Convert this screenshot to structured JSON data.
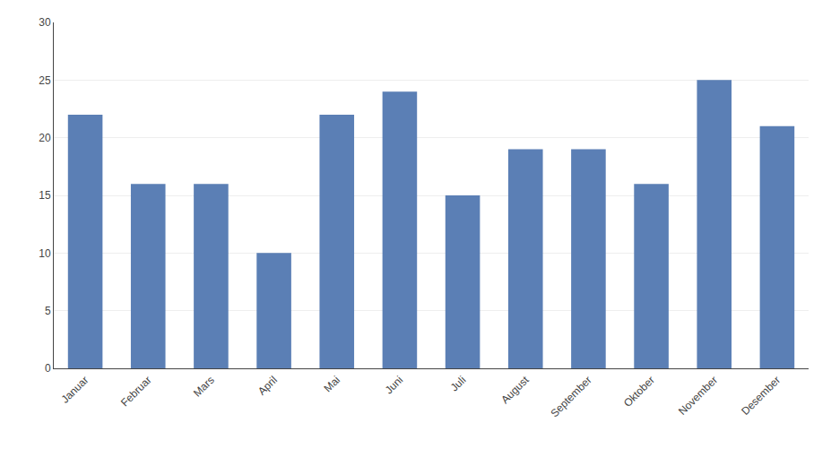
{
  "chart_data": {
    "type": "bar",
    "categories": [
      "Januar",
      "Februar",
      "Mars",
      "April",
      "Mai",
      "Juni",
      "Juli",
      "August",
      "September",
      "Oktober",
      "November",
      "Desember"
    ],
    "values": [
      22,
      16,
      16,
      10,
      22,
      24,
      15,
      19,
      19,
      16,
      25,
      21
    ],
    "color": "#5B7FB5",
    "ylim": [
      0,
      30
    ],
    "yticks": [
      0,
      5,
      10,
      15,
      20,
      25,
      30
    ],
    "grid": true
  }
}
